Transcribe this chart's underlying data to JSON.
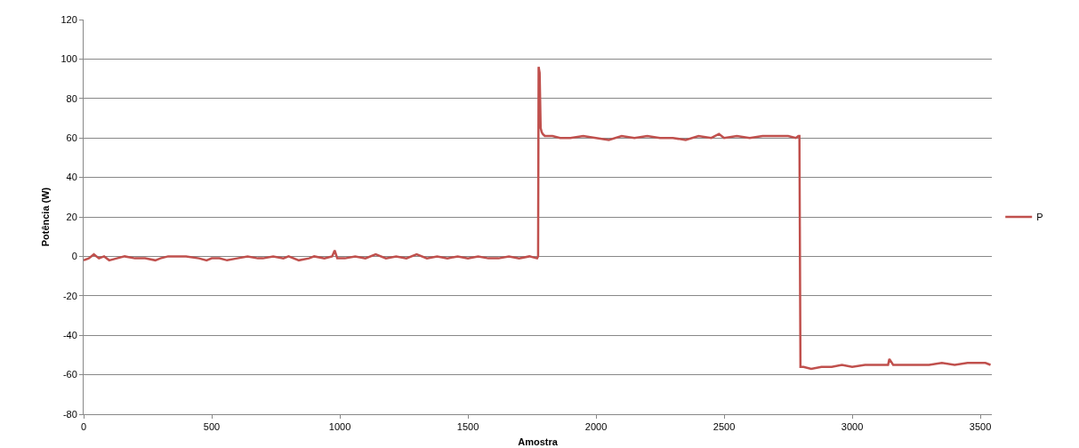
{
  "chart_data": {
    "type": "line",
    "xlabel": "Amostra",
    "ylabel": "Potência (W)",
    "x": [
      0,
      20,
      40,
      60,
      80,
      100,
      130,
      160,
      200,
      240,
      280,
      300,
      330,
      370,
      400,
      450,
      480,
      500,
      530,
      560,
      600,
      640,
      680,
      700,
      740,
      780,
      800,
      840,
      880,
      900,
      940,
      970,
      980,
      990,
      1020,
      1060,
      1100,
      1140,
      1180,
      1220,
      1260,
      1300,
      1340,
      1380,
      1420,
      1460,
      1500,
      1540,
      1580,
      1620,
      1660,
      1700,
      1740,
      1770,
      1774,
      1776,
      1780,
      1784,
      1788,
      1792,
      1800,
      1830,
      1860,
      1900,
      1950,
      2000,
      2050,
      2100,
      2150,
      2200,
      2250,
      2300,
      2350,
      2400,
      2450,
      2480,
      2500,
      2550,
      2600,
      2650,
      2700,
      2750,
      2780,
      2790,
      2794,
      2798,
      2810,
      2840,
      2880,
      2920,
      2960,
      3000,
      3050,
      3100,
      3140,
      3145,
      3160,
      3200,
      3250,
      3300,
      3350,
      3400,
      3450,
      3500,
      3520,
      3540
    ],
    "series": [
      {
        "name": "P",
        "color": "#c0504d",
        "values": [
          -2,
          -1,
          1,
          -1,
          0,
          -2,
          -1,
          0,
          -1,
          -1,
          -2,
          -1,
          0,
          0,
          0,
          -1,
          -2,
          -1,
          -1,
          -2,
          -1,
          0,
          -1,
          -1,
          0,
          -1,
          0,
          -2,
          -1,
          0,
          -1,
          0,
          3,
          -1,
          -1,
          0,
          -1,
          1,
          -1,
          0,
          -1,
          1,
          -1,
          0,
          -1,
          0,
          -1,
          0,
          -1,
          -1,
          0,
          -1,
          0,
          -1,
          0,
          96,
          93,
          65,
          63,
          62,
          61,
          61,
          60,
          60,
          61,
          60,
          59,
          61,
          60,
          61,
          60,
          60,
          59,
          61,
          60,
          62,
          60,
          61,
          60,
          61,
          61,
          61,
          60,
          61,
          61,
          -56,
          -56,
          -57,
          -56,
          -56,
          -55,
          -56,
          -55,
          -55,
          -55,
          -52,
          -55,
          -55,
          -55,
          -55,
          -54,
          -55,
          -54,
          -54,
          -54,
          -55
        ]
      }
    ],
    "xlim": [
      0,
      3545
    ],
    "xticks": [
      0,
      500,
      1000,
      1500,
      2000,
      2500,
      3000,
      3500
    ],
    "ylim": [
      -80,
      120
    ],
    "yticks": [
      -80,
      -60,
      -40,
      -20,
      0,
      20,
      40,
      60,
      80,
      100,
      120
    ],
    "grid": "y",
    "legend": "right",
    "marker": "none",
    "line_style": "solid"
  }
}
